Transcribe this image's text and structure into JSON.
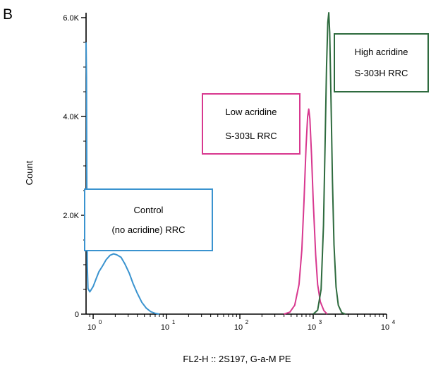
{
  "chart_data": {
    "type": "line",
    "panel_label": "B",
    "xlabel": "FL2-H :: 2S197, G-a-M PE",
    "ylabel": "Count",
    "x_scale": "log",
    "xlim": [
      0.8,
      10000
    ],
    "ylim": [
      0,
      6100
    ],
    "x_ticks": [
      {
        "value": 1,
        "base": "10",
        "exp": "0"
      },
      {
        "value": 10,
        "base": "10",
        "exp": "1"
      },
      {
        "value": 100,
        "base": "10",
        "exp": "2"
      },
      {
        "value": 1000,
        "base": "10",
        "exp": "3"
      },
      {
        "value": 10000,
        "base": "10",
        "exp": "4"
      }
    ],
    "y_ticks": [
      {
        "value": 0,
        "label": "0"
      },
      {
        "value": 2000,
        "label": "2.0K"
      },
      {
        "value": 4000,
        "label": "4.0K"
      },
      {
        "value": 6000,
        "label": "6.0K"
      }
    ],
    "grid": false,
    "series": [
      {
        "name": "Control (no acridine) RRC",
        "color": "#3a93cf",
        "label_lines": [
          "Control",
          "(no acridine) RRC"
        ],
        "points": [
          [
            0.8,
            5500
          ],
          [
            0.81,
            4800
          ],
          [
            0.82,
            2500
          ],
          [
            0.83,
            1000
          ],
          [
            0.85,
            520
          ],
          [
            0.9,
            450
          ],
          [
            1.0,
            560
          ],
          [
            1.1,
            720
          ],
          [
            1.2,
            860
          ],
          [
            1.35,
            980
          ],
          [
            1.5,
            1100
          ],
          [
            1.7,
            1190
          ],
          [
            1.9,
            1220
          ],
          [
            2.1,
            1200
          ],
          [
            2.4,
            1150
          ],
          [
            2.7,
            1020
          ],
          [
            3.1,
            830
          ],
          [
            3.5,
            620
          ],
          [
            4.0,
            420
          ],
          [
            4.6,
            240
          ],
          [
            5.3,
            120
          ],
          [
            6.1,
            50
          ],
          [
            7.0,
            15
          ],
          [
            8.0,
            0
          ]
        ]
      },
      {
        "name": "Low acridine S-303L RRC",
        "color": "#d8388f",
        "label_lines": [
          "Low acridine",
          "S-303L RRC"
        ],
        "points": [
          [
            400,
            0
          ],
          [
            480,
            40
          ],
          [
            560,
            180
          ],
          [
            640,
            600
          ],
          [
            700,
            1300
          ],
          [
            750,
            2300
          ],
          [
            800,
            3400
          ],
          [
            840,
            4000
          ],
          [
            870,
            4150
          ],
          [
            900,
            3950
          ],
          [
            950,
            3200
          ],
          [
            1000,
            2300
          ],
          [
            1080,
            1200
          ],
          [
            1150,
            600
          ],
          [
            1250,
            250
          ],
          [
            1400,
            70
          ],
          [
            1550,
            0
          ]
        ]
      },
      {
        "name": "High acridine S-303H RRC",
        "color": "#2e6b3e",
        "label_lines": [
          "High acridine",
          "S-303H RRC"
        ],
        "points": [
          [
            1000,
            0
          ],
          [
            1150,
            80
          ],
          [
            1280,
            500
          ],
          [
            1380,
            1800
          ],
          [
            1450,
            3400
          ],
          [
            1520,
            5000
          ],
          [
            1580,
            5900
          ],
          [
            1630,
            6100
          ],
          [
            1680,
            5700
          ],
          [
            1750,
            4300
          ],
          [
            1830,
            2700
          ],
          [
            1920,
            1400
          ],
          [
            2050,
            550
          ],
          [
            2200,
            180
          ],
          [
            2450,
            30
          ],
          [
            2750,
            0
          ]
        ]
      }
    ]
  }
}
